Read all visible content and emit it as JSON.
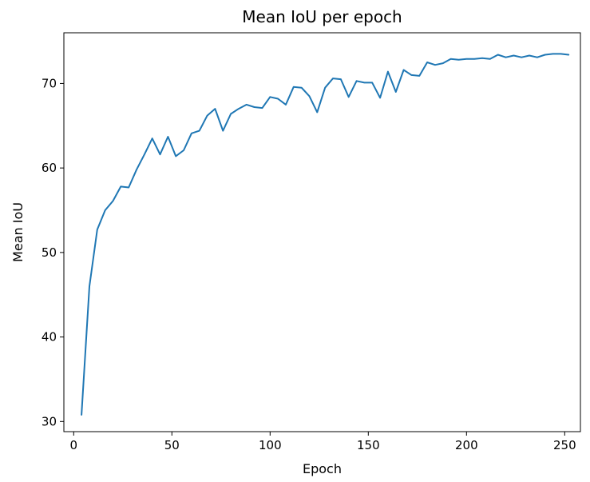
{
  "chart_data": {
    "type": "line",
    "title": "Mean IoU per epoch",
    "xlabel": "Epoch",
    "ylabel": "Mean IoU",
    "xlim": [
      -5,
      258
    ],
    "ylim": [
      28.8,
      76.0
    ],
    "xticks": [
      0,
      50,
      100,
      150,
      200,
      250
    ],
    "yticks": [
      30,
      40,
      50,
      60,
      70
    ],
    "grid": false,
    "line_color": "#1f77b4",
    "series": [
      {
        "x": [
          4,
          8,
          12,
          16,
          20,
          24,
          28,
          32,
          36,
          40,
          44,
          48,
          52,
          56,
          60,
          64,
          68,
          72,
          76,
          80,
          84,
          88,
          92,
          96,
          100,
          104,
          108,
          112,
          116,
          120,
          124,
          128,
          132,
          136,
          140,
          144,
          148,
          152,
          156,
          160,
          164,
          168,
          172,
          176,
          180,
          184,
          188,
          192,
          196,
          200,
          204,
          208,
          212,
          216,
          220,
          224,
          228,
          232,
          236,
          240,
          244,
          248,
          252
        ],
        "values": [
          30.8,
          46.0,
          52.7,
          55.0,
          56.1,
          57.8,
          57.7,
          59.8,
          61.6,
          63.5,
          61.6,
          63.7,
          61.4,
          62.1,
          64.1,
          64.4,
          66.2,
          67.0,
          64.4,
          66.4,
          67.0,
          67.5,
          67.2,
          67.1,
          68.4,
          68.2,
          67.5,
          69.6,
          69.5,
          68.5,
          66.6,
          69.5,
          70.6,
          70.5,
          68.4,
          70.3,
          70.1,
          70.1,
          68.3,
          71.4,
          69.0,
          71.6,
          71.0,
          70.9,
          72.5,
          72.2,
          72.4,
          72.9,
          72.8,
          72.9,
          72.9,
          73.0,
          72.9,
          73.4,
          73.1,
          73.3,
          73.1,
          73.3,
          73.1,
          73.4,
          73.5,
          73.5,
          73.4
        ]
      }
    ]
  }
}
